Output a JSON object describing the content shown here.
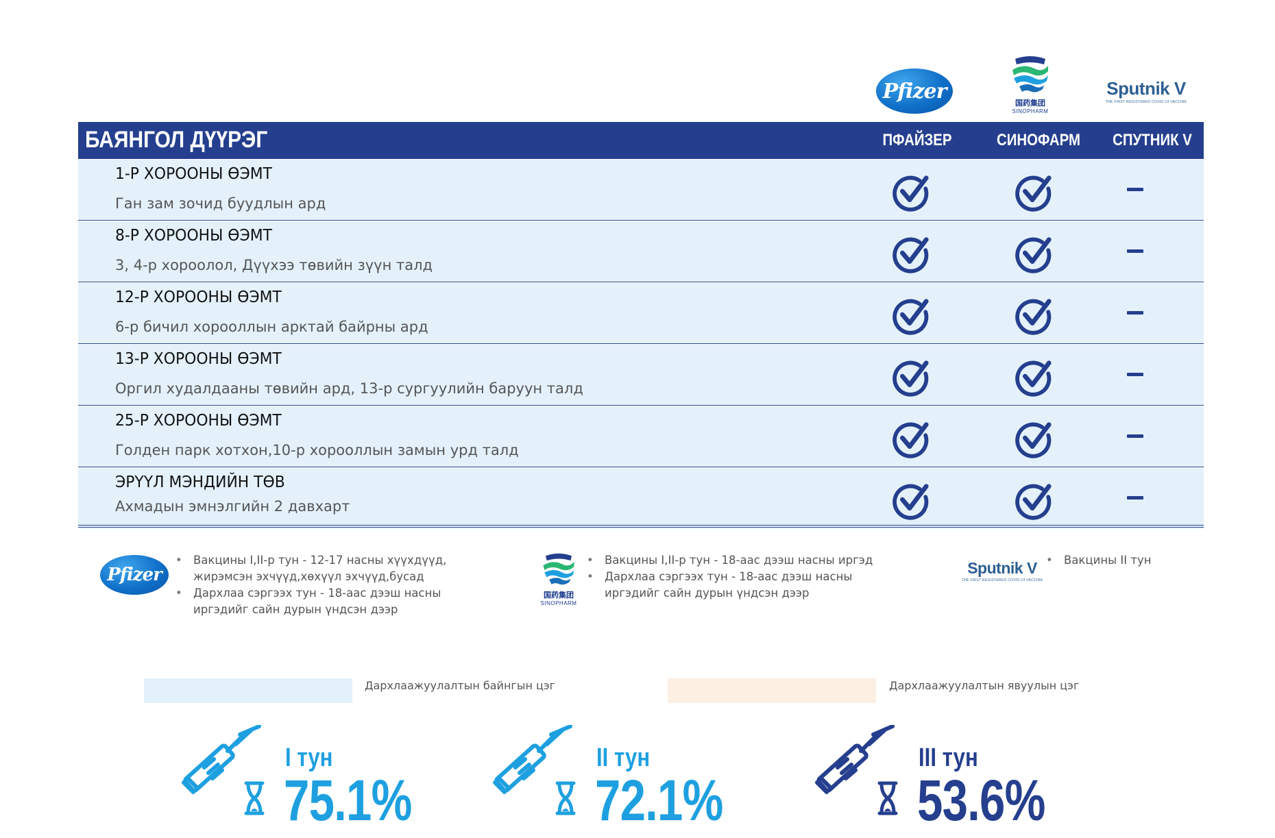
{
  "logos": {
    "pfizer": "Pfizer",
    "sinopharm_cn": "国药集团",
    "sinopharm_en": "SINOPHARM",
    "sputnik": "Sputnik V",
    "sputnik_tagline": "THE FIRST REGISTERED COVID-19 VACCINE"
  },
  "table": {
    "district": "БАЯНГОЛ ДҮҮРЭГ",
    "columns": [
      "ПФАЙЗЕР",
      "СИНОФАРМ",
      "СПУТНИК V"
    ],
    "rows": [
      {
        "title": "1-Р ХОРООНЫ ӨЭМТ",
        "address": "Ган зам зочид буудлын ард",
        "pfizer": true,
        "sinopharm": true,
        "sputnik": false
      },
      {
        "title": "8-Р ХОРООНЫ ӨЭМТ",
        "address": "3, 4-р хороолол, Дүүхээ төвийн зүүн талд",
        "pfizer": true,
        "sinopharm": true,
        "sputnik": false
      },
      {
        "title": "12-Р ХОРООНЫ ӨЭМТ",
        "address": "6-р бичил хорооллын арктай байрны ард",
        "pfizer": true,
        "sinopharm": true,
        "sputnik": false
      },
      {
        "title": "13-Р ХОРООНЫ ӨЭМТ",
        "address": "Оргил худалдааны төвийн ард, 13-р сургуулийн баруун талд",
        "pfizer": true,
        "sinopharm": true,
        "sputnik": false
      },
      {
        "title": "25-Р ХОРООНЫ ӨЭМТ",
        "address": "Голден парк хотхон,10-р хорооллын замын урд талд",
        "pfizer": true,
        "sinopharm": true,
        "sputnik": false
      },
      {
        "title": "ЭРҮҮЛ МЭНДИЙН ТӨВ",
        "address": "Ахмадын эмнэлгийн 2 давхарт",
        "pfizer": true,
        "sinopharm": true,
        "sputnik": false
      }
    ]
  },
  "notes": {
    "pfizer": [
      "Вакцины I,II-р тун - 12-17 насны хүүхдүүд, жирэмсэн эхчүүд,хөхүүл эхчүүд,бусад",
      "Дархлаа сэргээх тун - 18-аас дээш насны иргэдийг сайн дурын үндсэн дээр"
    ],
    "sinopharm": [
      "Вакцины I,II-р тун - 18-аас дээш насны иргэд",
      "Дархлаа сэргээх тун - 18-аас дээш насны иргэдийг сайн дурын үндсэн дээр"
    ],
    "sputnik": [
      "Вакцины II тун"
    ]
  },
  "key": {
    "fixed_label": "Дархлаажуулалтын байнгын цэг",
    "fixed_color": "#e3f1fb",
    "mobile_label": "Дархлаажуулалтын явуулын цэг",
    "mobile_color": "#fcf0e3"
  },
  "stats": [
    {
      "dose": "I тун",
      "value": "75.1%",
      "color": "#1ea0e0"
    },
    {
      "dose": "II тун",
      "value": "72.1%",
      "color": "#1ea0e0"
    },
    {
      "dose": "III тун",
      "value": "53.6%",
      "color": "#253f8e"
    }
  ],
  "colors": {
    "header_bg": "#253f8e",
    "row_bg": "#e4f1fb",
    "accent_blue": "#1ea0e0",
    "navy": "#253f8e"
  }
}
